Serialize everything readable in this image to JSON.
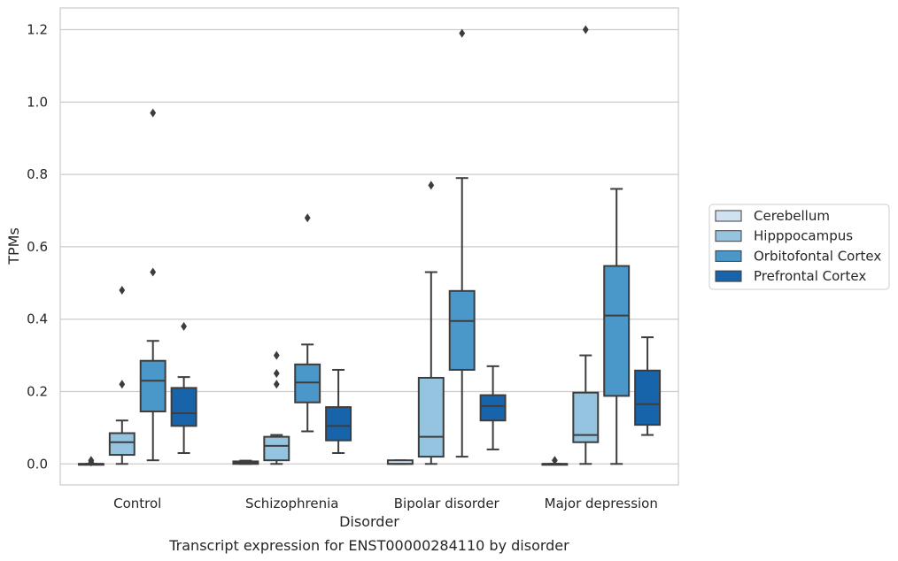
{
  "chart_data": {
    "type": "box",
    "title": "",
    "caption": "Transcript expression for ENST00000284110 by disorder",
    "xlabel": "Disorder",
    "ylabel": "TPMs",
    "ylim": [
      -0.058,
      1.26
    ],
    "yticks": [
      0.0,
      0.2,
      0.4,
      0.6,
      0.8,
      1.0,
      1.2
    ],
    "ytick_labels": [
      "0.0",
      "0.2",
      "0.4",
      "0.6",
      "0.8",
      "1.0",
      "1.2"
    ],
    "grid": true,
    "legend_position": "right",
    "categories": [
      "Control",
      "Schizophrenia",
      "Bipolar disorder",
      "Major depression"
    ],
    "series": [
      {
        "name": "Cerebellum",
        "color": "#d0e1f2",
        "boxes": [
          {
            "whislo": 0.0,
            "q1": 0.0,
            "med": 0.0,
            "q3": 0.0,
            "whishi": 0.0,
            "fliers": [
              0.01,
              0.005
            ]
          },
          {
            "whislo": 0.0,
            "q1": 0.0,
            "med": 0.003,
            "q3": 0.007,
            "whishi": 0.009,
            "fliers": []
          },
          {
            "whislo": 0.0,
            "q1": 0.0,
            "med": 0.0,
            "q3": 0.01,
            "whishi": 0.01,
            "fliers": []
          },
          {
            "whislo": 0.0,
            "q1": 0.0,
            "med": 0.0,
            "q3": 0.0,
            "whishi": 0.0,
            "fliers": [
              0.01
            ]
          }
        ]
      },
      {
        "name": "Hipppocampus",
        "color": "#94c4df",
        "boxes": [
          {
            "whislo": 0.0,
            "q1": 0.025,
            "med": 0.06,
            "q3": 0.085,
            "whishi": 0.12,
            "fliers": [
              0.22,
              0.48
            ]
          },
          {
            "whislo": 0.0,
            "q1": 0.01,
            "med": 0.05,
            "q3": 0.075,
            "whishi": 0.08,
            "fliers": [
              0.22,
              0.25,
              0.3
            ]
          },
          {
            "whislo": 0.0,
            "q1": 0.02,
            "med": 0.075,
            "q3": 0.238,
            "whishi": 0.53,
            "fliers": [
              0.77
            ]
          },
          {
            "whislo": 0.0,
            "q1": 0.06,
            "med": 0.08,
            "q3": 0.197,
            "whishi": 0.3,
            "fliers": [
              1.2
            ]
          }
        ]
      },
      {
        "name": "Orbitofontal Cortex",
        "color": "#4a98c9",
        "boxes": [
          {
            "whislo": 0.01,
            "q1": 0.145,
            "med": 0.23,
            "q3": 0.285,
            "whishi": 0.34,
            "fliers": [
              0.53,
              0.97
            ]
          },
          {
            "whislo": 0.09,
            "q1": 0.17,
            "med": 0.225,
            "q3": 0.275,
            "whishi": 0.33,
            "fliers": [
              0.68
            ]
          },
          {
            "whislo": 0.02,
            "q1": 0.26,
            "med": 0.395,
            "q3": 0.478,
            "whishi": 0.79,
            "fliers": [
              1.19
            ]
          },
          {
            "whislo": 0.0,
            "q1": 0.188,
            "med": 0.41,
            "q3": 0.547,
            "whishi": 0.76,
            "fliers": []
          }
        ]
      },
      {
        "name": "Prefrontal Cortex",
        "color": "#1764ab",
        "boxes": [
          {
            "whislo": 0.03,
            "q1": 0.105,
            "med": 0.14,
            "q3": 0.21,
            "whishi": 0.24,
            "fliers": [
              0.38
            ]
          },
          {
            "whislo": 0.03,
            "q1": 0.065,
            "med": 0.105,
            "q3": 0.157,
            "whishi": 0.26,
            "fliers": []
          },
          {
            "whislo": 0.04,
            "q1": 0.12,
            "med": 0.16,
            "q3": 0.19,
            "whishi": 0.27,
            "fliers": []
          },
          {
            "whislo": 0.08,
            "q1": 0.108,
            "med": 0.165,
            "q3": 0.258,
            "whishi": 0.35,
            "fliers": []
          }
        ]
      }
    ]
  }
}
